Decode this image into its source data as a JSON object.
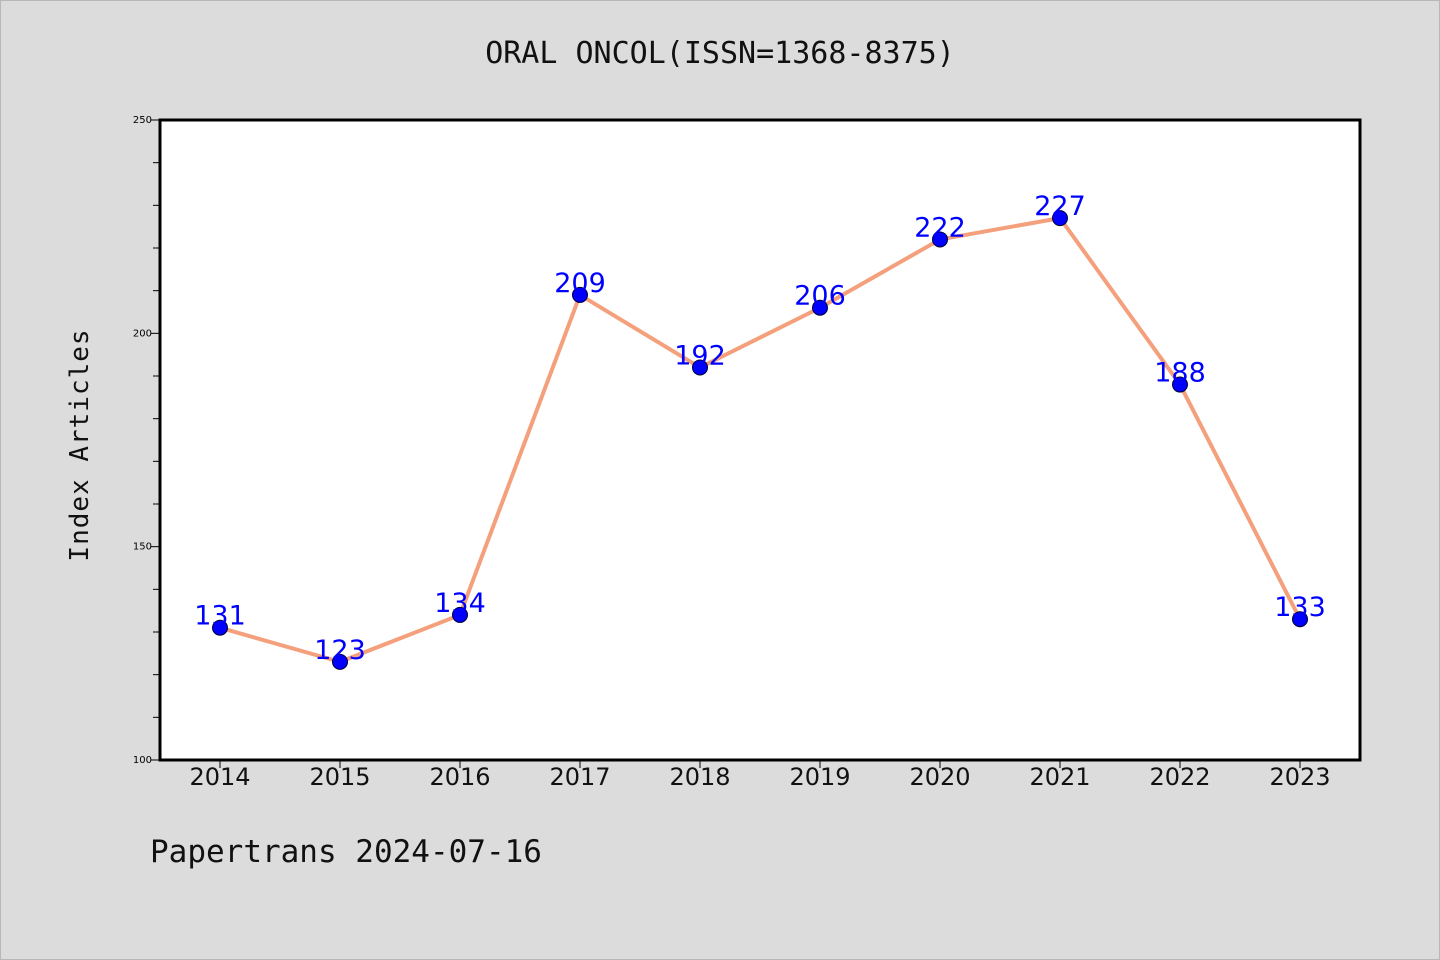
{
  "chart_data": {
    "type": "line",
    "title": "ORAL ONCOL(ISSN=1368-8375)",
    "xlabel": "",
    "ylabel": "Index Articles",
    "categories": [
      "2014",
      "2015",
      "2016",
      "2017",
      "2018",
      "2019",
      "2020",
      "2021",
      "2022",
      "2023"
    ],
    "values": [
      131,
      123,
      134,
      209,
      192,
      206,
      222,
      227,
      188,
      133
    ],
    "ylim": [
      100,
      250
    ],
    "y_ticks": [
      100,
      150,
      200,
      250
    ],
    "grid": false,
    "line_color": "#f4a07c",
    "marker_color": "#0000ff",
    "label_color": "#0000ff"
  },
  "footer": "Papertrans 2024-07-16"
}
